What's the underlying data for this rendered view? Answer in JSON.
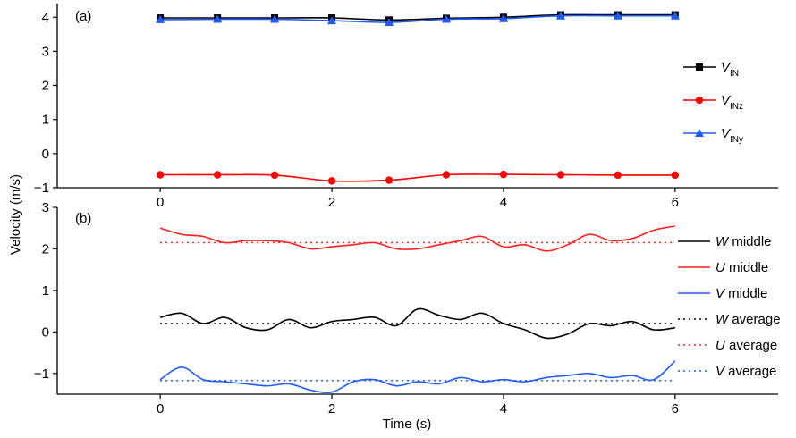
{
  "figure": {
    "ylabel": "Velocity (m/s)",
    "xlabel": "Time (s)"
  },
  "chart_data": [
    {
      "type": "line",
      "panel_label": "(a)",
      "xlim": [
        -1.2,
        7.2
      ],
      "ylim": [
        -1,
        4.4
      ],
      "x_ticks": [
        0,
        2,
        4,
        6
      ],
      "x_tick_labels": [
        "0",
        "2",
        "4",
        "6"
      ],
      "y_ticks": [
        -1,
        0,
        1,
        2,
        3,
        4
      ],
      "y_tick_labels": [
        "−1",
        "0",
        "1",
        "2",
        "3",
        "4"
      ],
      "legend_position": "right",
      "series": [
        {
          "name": "V",
          "name_sub": "IN",
          "color": "#000000",
          "marker": "square",
          "x": [
            0,
            0.667,
            1.333,
            2,
            2.667,
            3.333,
            4,
            4.667,
            5.333,
            6
          ],
          "values": [
            3.98,
            3.98,
            3.98,
            3.98,
            3.92,
            3.97,
            4.0,
            4.07,
            4.07,
            4.07
          ]
        },
        {
          "name": "V",
          "name_sub": "INz",
          "color": "#ff0000",
          "marker": "circle",
          "x": [
            0,
            0.667,
            1.333,
            2,
            2.667,
            3.333,
            4,
            4.667,
            5.333,
            6
          ],
          "values": [
            -0.62,
            -0.62,
            -0.63,
            -0.8,
            -0.78,
            -0.62,
            -0.61,
            -0.62,
            -0.63,
            -0.63
          ]
        },
        {
          "name": "V",
          "name_sub": "INy",
          "color": "#1f5bff",
          "marker": "triangle",
          "x": [
            0,
            0.667,
            1.333,
            2,
            2.667,
            3.333,
            4,
            4.667,
            5.333,
            6
          ],
          "values": [
            3.93,
            3.94,
            3.94,
            3.9,
            3.85,
            3.94,
            3.96,
            4.04,
            4.04,
            4.04
          ]
        }
      ]
    },
    {
      "type": "line",
      "panel_label": "(b)",
      "xlim": [
        -1.2,
        7.2
      ],
      "ylim": [
        -1.5,
        3
      ],
      "x_ticks": [
        0,
        2,
        4,
        6
      ],
      "x_tick_labels": [
        "0",
        "2",
        "4",
        "6"
      ],
      "y_ticks": [
        -1,
        0,
        1,
        2,
        3
      ],
      "y_tick_labels": [
        "−1",
        "0",
        "1",
        "2",
        "3"
      ],
      "legend_position": "right",
      "series": [
        {
          "name": "W",
          "name_suffix": " middle",
          "color": "#000000",
          "style": "solid",
          "x": [
            0,
            0.25,
            0.5,
            0.75,
            1,
            1.25,
            1.5,
            1.75,
            2,
            2.25,
            2.5,
            2.75,
            3,
            3.25,
            3.5,
            3.75,
            4,
            4.25,
            4.5,
            4.75,
            5,
            5.25,
            5.5,
            5.75,
            6
          ],
          "values": [
            0.35,
            0.45,
            0.2,
            0.35,
            0.1,
            0.05,
            0.3,
            0.1,
            0.25,
            0.3,
            0.35,
            0.15,
            0.55,
            0.4,
            0.3,
            0.45,
            0.2,
            0.05,
            -0.15,
            -0.05,
            0.2,
            0.15,
            0.25,
            0.05,
            0.1
          ]
        },
        {
          "name": "U",
          "name_suffix": " middle",
          "color": "#ff2020",
          "style": "solid",
          "x": [
            0,
            0.25,
            0.5,
            0.75,
            1,
            1.25,
            1.5,
            1.75,
            2,
            2.25,
            2.5,
            2.75,
            3,
            3.25,
            3.5,
            3.75,
            4,
            4.25,
            4.5,
            4.75,
            5,
            5.25,
            5.5,
            5.75,
            6
          ],
          "values": [
            2.5,
            2.35,
            2.3,
            2.15,
            2.2,
            2.2,
            2.15,
            2.0,
            2.05,
            2.1,
            2.15,
            2.0,
            2.0,
            2.1,
            2.2,
            2.3,
            2.05,
            2.1,
            1.95,
            2.1,
            2.35,
            2.2,
            2.25,
            2.45,
            2.55
          ]
        },
        {
          "name": "V",
          "name_suffix": " middle",
          "color": "#1f5bff",
          "style": "solid",
          "x": [
            0,
            0.25,
            0.5,
            0.75,
            1,
            1.25,
            1.5,
            1.75,
            2,
            2.25,
            2.5,
            2.75,
            3,
            3.25,
            3.5,
            3.75,
            4,
            4.25,
            4.5,
            4.75,
            5,
            5.25,
            5.5,
            5.75,
            6
          ],
          "values": [
            -1.15,
            -0.85,
            -1.15,
            -1.2,
            -1.25,
            -1.3,
            -1.25,
            -1.4,
            -1.45,
            -1.2,
            -1.15,
            -1.3,
            -1.2,
            -1.25,
            -1.1,
            -1.2,
            -1.15,
            -1.2,
            -1.1,
            -1.05,
            -1.0,
            -1.1,
            -1.05,
            -1.15,
            -0.7
          ]
        },
        {
          "name": "W",
          "name_suffix": " average",
          "color": "#000000",
          "style": "dotted",
          "x": [
            0,
            6
          ],
          "values": [
            0.2,
            0.2
          ]
        },
        {
          "name": "U",
          "name_suffix": " average",
          "color": "#ff2020",
          "style": "dotted",
          "x": [
            0,
            6
          ],
          "values": [
            2.15,
            2.15
          ]
        },
        {
          "name": "V",
          "name_suffix": " average",
          "color": "#1f5bff",
          "style": "dotted",
          "x": [
            0,
            6
          ],
          "values": [
            -1.17,
            -1.17
          ]
        }
      ]
    }
  ]
}
